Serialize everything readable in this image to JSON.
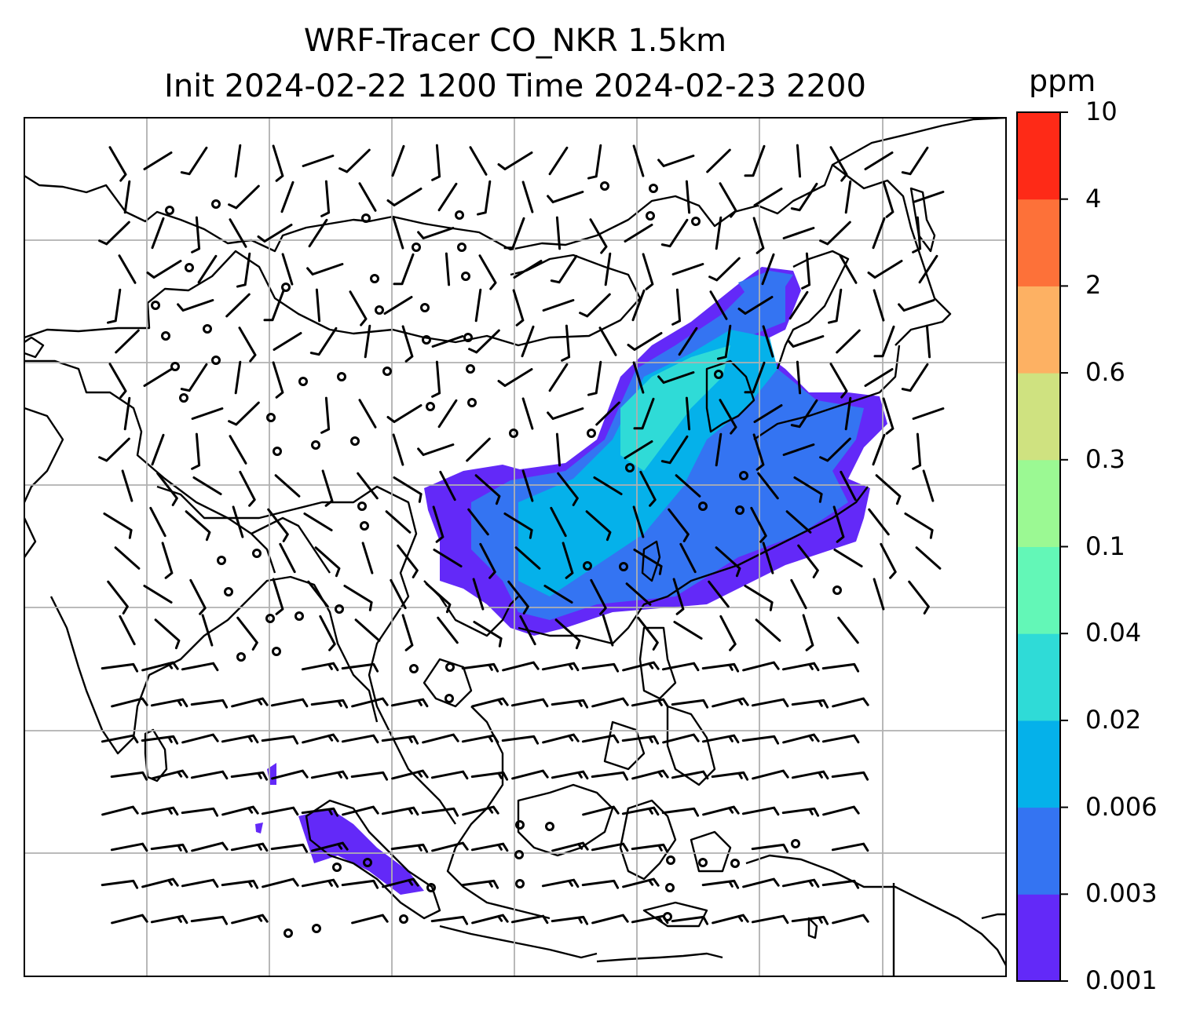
{
  "title": {
    "line1": "WRF-Tracer CO_NKR 1.5km",
    "line2": "Init 2024-02-22 1200 Time 2024-02-23 2200"
  },
  "colorbar": {
    "unit": "ppm",
    "levels": [
      "0.001",
      "0.003",
      "0.006",
      "0.02",
      "0.04",
      "0.1",
      "0.3",
      "0.6",
      "2",
      "4",
      "10"
    ],
    "colors": [
      "#6329f8",
      "#3474f2",
      "#05b1ea",
      "#2fdbd7",
      "#63f7b7",
      "#9bf993",
      "#cfe280",
      "#fdb163",
      "#fd7139",
      "#fe2a17"
    ]
  },
  "map": {
    "grid_lines": true,
    "gridline_color": "#b0b0b0",
    "coastline_color": "#000000"
  }
}
